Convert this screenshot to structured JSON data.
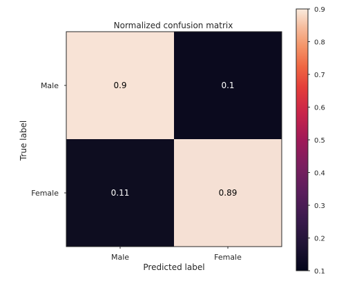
{
  "chart_data": {
    "type": "heatmap",
    "title": "Normalized confusion matrix",
    "xlabel": "Predicted label",
    "ylabel": "True label",
    "x_categories": [
      "Male",
      "Female"
    ],
    "y_categories": [
      "Male",
      "Female"
    ],
    "values": [
      [
        0.9,
        0.1
      ],
      [
        0.11,
        0.89
      ]
    ],
    "cell_labels": [
      [
        "0.9",
        "0.1"
      ],
      [
        "0.11",
        "0.89"
      ]
    ],
    "colormap": "rocket",
    "colors": {
      "high": "#f8e3d6",
      "low": "#0b0a1e",
      "text_on_light": "#000000",
      "text_on_dark": "#ffffff"
    },
    "colorbar": {
      "range": [
        0.1,
        0.9
      ],
      "ticks": [
        "0.1",
        "0.2",
        "0.3",
        "0.4",
        "0.5",
        "0.6",
        "0.7",
        "0.8",
        "0.9"
      ]
    },
    "grid": false,
    "legend": "colorbar-right"
  }
}
